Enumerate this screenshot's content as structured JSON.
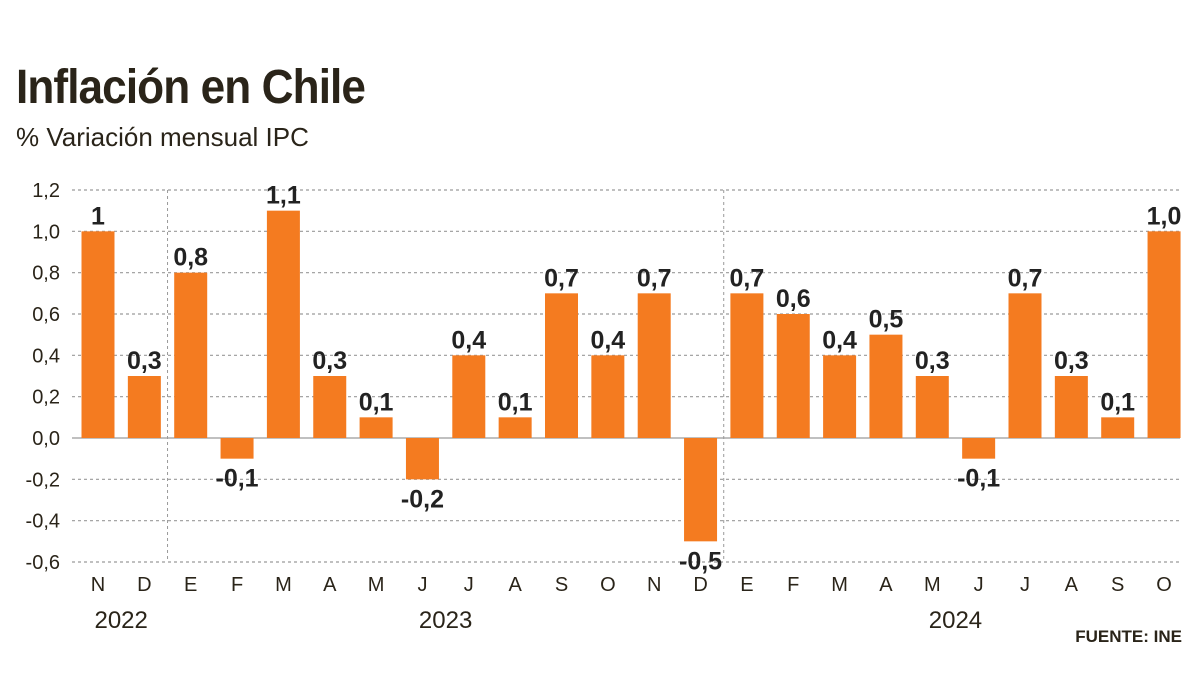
{
  "colors": {
    "bar": "#f47b20",
    "text": "#2a2419",
    "grid": "#9a9a9a"
  },
  "chart_data": {
    "type": "bar",
    "title": "Inflación en Chile",
    "subtitle": "% Variación mensual IPC",
    "source": "FUENTE: INE",
    "ylim": [
      -0.6,
      1.2
    ],
    "y_ticks": [
      "1,2",
      "1,0",
      "0,8",
      "0,6",
      "0,4",
      "0,2",
      "0,0",
      "-0,2",
      "-0,4",
      "-0,6"
    ],
    "y_tick_values": [
      1.2,
      1.0,
      0.8,
      0.6,
      0.4,
      0.2,
      0.0,
      -0.2,
      -0.4,
      -0.6
    ],
    "grid": true,
    "categories": [
      "N",
      "D",
      "E",
      "F",
      "M",
      "A",
      "M",
      "J",
      "J",
      "A",
      "S",
      "O",
      "N",
      "D",
      "E",
      "F",
      "M",
      "A",
      "M",
      "J",
      "J",
      "A",
      "S",
      "O"
    ],
    "values": [
      1.0,
      0.3,
      0.8,
      -0.1,
      1.1,
      0.3,
      0.1,
      -0.2,
      0.4,
      0.1,
      0.7,
      0.4,
      0.7,
      -0.5,
      0.7,
      0.6,
      0.4,
      0.5,
      0.3,
      -0.1,
      0.7,
      0.3,
      0.1,
      1.0
    ],
    "data_labels": [
      "1",
      "0,3",
      "0,8",
      "-0,1",
      "1,1",
      "0,3",
      "0,1",
      "-0,2",
      "0,4",
      "0,1",
      "0,7",
      "0,4",
      "0,7",
      "-0,5",
      "0,7",
      "0,6",
      "0,4",
      "0,5",
      "0,3",
      "-0,1",
      "0,7",
      "0,3",
      "0,1",
      "1,0"
    ],
    "years": [
      {
        "label": "2022",
        "start": 0,
        "end": 1
      },
      {
        "label": "2023",
        "start": 2,
        "end": 13
      },
      {
        "label": "2024",
        "start": 14,
        "end": 23
      }
    ]
  }
}
